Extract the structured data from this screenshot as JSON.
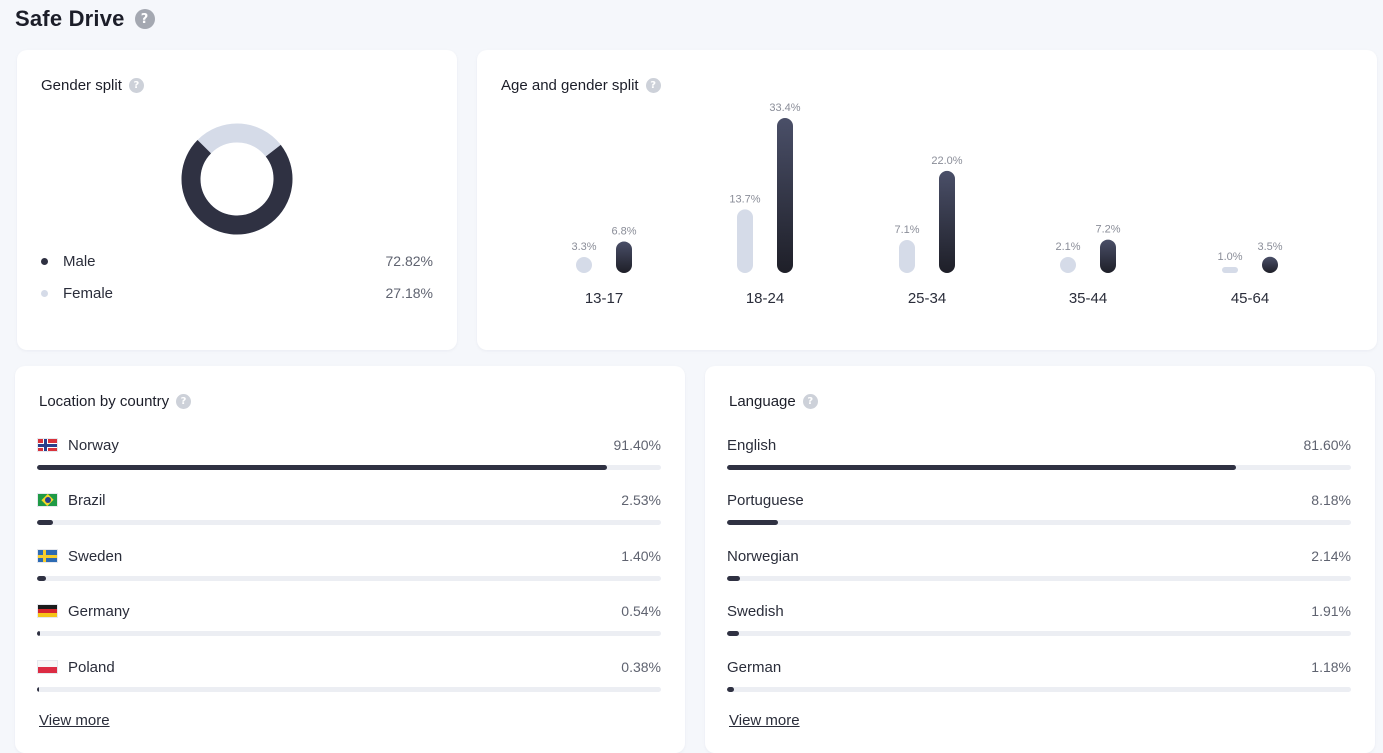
{
  "page": {
    "title": "Safe Drive"
  },
  "colors": {
    "dark": "#2f3142",
    "light": "#d5dbe8"
  },
  "gender": {
    "title": "Gender split",
    "items": [
      {
        "label": "Male",
        "value": "72.82%",
        "share": 72.82
      },
      {
        "label": "Female",
        "value": "27.18%",
        "share": 27.18
      }
    ]
  },
  "age": {
    "title": "Age and gender split",
    "chart_data": {
      "type": "bar",
      "categories": [
        "13-17",
        "18-24",
        "25-34",
        "35-44",
        "45-64"
      ],
      "series": [
        {
          "values": [
            3.3,
            13.7,
            7.1,
            2.1,
            1.0
          ],
          "labels": [
            "3.3%",
            "13.7%",
            "7.1%",
            "2.1%",
            "1.0%"
          ]
        },
        {
          "values": [
            6.8,
            33.4,
            22.0,
            7.2,
            3.5
          ],
          "labels": [
            "6.8%",
            "33.4%",
            "22.0%",
            "7.2%",
            "3.5%"
          ]
        }
      ],
      "ylim": [
        0,
        33.4
      ]
    }
  },
  "location": {
    "title": "Location by country",
    "items": [
      {
        "label": "Norway",
        "value": "91.40%",
        "pct": 91.4,
        "flag": "norway-flag-icon"
      },
      {
        "label": "Brazil",
        "value": "2.53%",
        "pct": 2.53,
        "flag": "brazil-flag-icon"
      },
      {
        "label": "Sweden",
        "value": "1.40%",
        "pct": 1.4,
        "flag": "sweden-flag-icon"
      },
      {
        "label": "Germany",
        "value": "0.54%",
        "pct": 0.54,
        "flag": "germany-flag-icon"
      },
      {
        "label": "Poland",
        "value": "0.38%",
        "pct": 0.38,
        "flag": "poland-flag-icon"
      }
    ],
    "view_more": "View more"
  },
  "language": {
    "title": "Language",
    "items": [
      {
        "label": "English",
        "value": "81.60%",
        "pct": 81.6
      },
      {
        "label": "Portuguese",
        "value": "8.18%",
        "pct": 8.18
      },
      {
        "label": "Norwegian",
        "value": "2.14%",
        "pct": 2.14
      },
      {
        "label": "Swedish",
        "value": "1.91%",
        "pct": 1.91
      },
      {
        "label": "German",
        "value": "1.18%",
        "pct": 1.18
      }
    ],
    "view_more": "View more"
  }
}
